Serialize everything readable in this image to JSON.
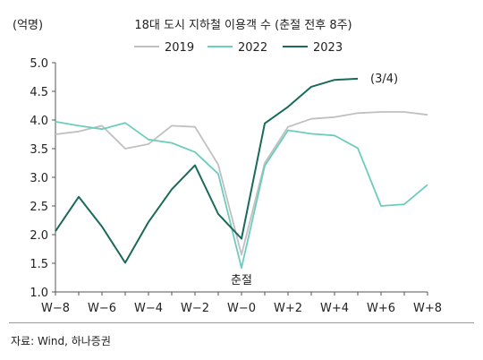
{
  "chart_data": {
    "type": "line",
    "title": "18대 도시 지하철 이용객 수 (춘절 전후 8주)",
    "ylabel": "(억명)",
    "xlabel": "",
    "ylim": [
      1.0,
      5.0
    ],
    "yticks": [
      1.0,
      1.5,
      2.0,
      2.5,
      3.0,
      3.5,
      4.0,
      4.5,
      5.0
    ],
    "ytick_labels": [
      "1.0",
      "1.5",
      "2.0",
      "2.5",
      "3.0",
      "3.5",
      "4.0",
      "4.5",
      "5.0"
    ],
    "x": [
      -8,
      -7,
      -6,
      -5,
      -4,
      -3,
      -2,
      -1,
      0,
      1,
      2,
      3,
      4,
      5,
      6,
      7,
      8
    ],
    "xtick_values": [
      -8,
      -6,
      -4,
      -2,
      0,
      2,
      4,
      6,
      8
    ],
    "xtick_labels": [
      "W−8",
      "W−6",
      "W−4",
      "W−2",
      "W−0",
      "W+2",
      "W+4",
      "W+6",
      "W+8"
    ],
    "grid": false,
    "legend_position": "top",
    "series": [
      {
        "name": "2019",
        "color": "#c0c0c0",
        "values": [
          3.75,
          3.8,
          3.9,
          3.5,
          3.58,
          3.9,
          3.88,
          3.22,
          1.65,
          3.25,
          3.88,
          4.02,
          4.05,
          4.12,
          4.14,
          4.14,
          4.09
        ]
      },
      {
        "name": "2022",
        "color": "#6dcdbd",
        "values": [
          3.97,
          3.9,
          3.84,
          3.95,
          3.66,
          3.6,
          3.44,
          3.06,
          1.42,
          3.2,
          3.82,
          3.76,
          3.73,
          3.51,
          2.5,
          2.53,
          2.87
        ]
      },
      {
        "name": "2023",
        "color": "#1a6a5a",
        "values": [
          2.06,
          2.66,
          2.14,
          1.51,
          2.22,
          2.79,
          3.21,
          2.36,
          1.93,
          3.94,
          4.23,
          4.58,
          4.7,
          4.72,
          null,
          null,
          null
        ]
      }
    ],
    "annotations": [
      {
        "text": "(3/4)",
        "x": 5,
        "y": 4.72
      },
      {
        "text": "춘절",
        "x": 0,
        "y": 1.42
      }
    ]
  },
  "source": "자료: Wind, 하나증권"
}
